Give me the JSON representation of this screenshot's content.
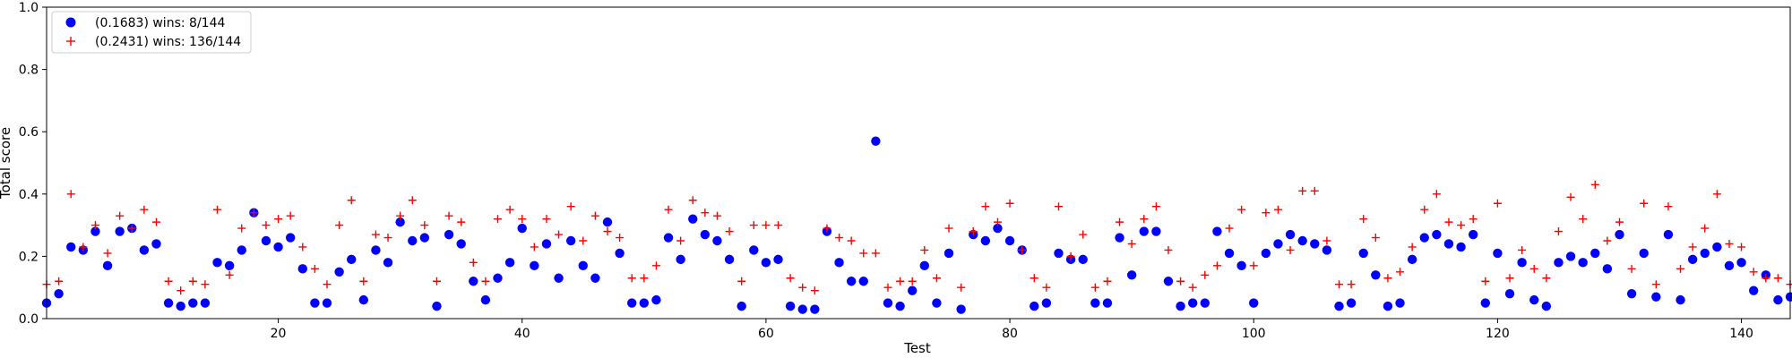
{
  "chart_data": {
    "type": "scatter",
    "title": "",
    "xlabel": "Test",
    "ylabel": "Total score",
    "xlim": [
      1,
      144
    ],
    "ylim": [
      0,
      1.0
    ],
    "xticks": [
      20,
      40,
      60,
      80,
      100,
      120,
      140
    ],
    "yticks": [
      0.0,
      0.2,
      0.4,
      0.6,
      0.8,
      1.0
    ],
    "xtick_labels": [
      "20",
      "40",
      "60",
      "80",
      "100",
      "120",
      "140"
    ],
    "ytick_labels": [
      "0.0",
      "0.2",
      "0.4",
      "0.6",
      "0.8",
      "1.0"
    ],
    "legend_position": "top-left",
    "series": [
      {
        "name": "(0.1683) wins: 8/144",
        "marker": "circle",
        "color": "#0000ff",
        "values": [
          0.05,
          0.08,
          0.23,
          0.22,
          0.28,
          0.17,
          0.28,
          0.29,
          0.22,
          0.24,
          0.05,
          0.04,
          0.05,
          0.05,
          0.18,
          0.17,
          0.22,
          0.34,
          0.25,
          0.23,
          0.26,
          0.16,
          0.05,
          0.05,
          0.15,
          0.19,
          0.06,
          0.22,
          0.18,
          0.31,
          0.25,
          0.26,
          0.04,
          0.27,
          0.24,
          0.12,
          0.06,
          0.13,
          0.18,
          0.29,
          0.17,
          0.24,
          0.13,
          0.25,
          0.17,
          0.13,
          0.31,
          0.21,
          0.05,
          0.05,
          0.06,
          0.26,
          0.19,
          0.32,
          0.27,
          0.25,
          0.19,
          0.04,
          0.22,
          0.18,
          0.19,
          0.04,
          0.03,
          0.03,
          0.28,
          0.18,
          0.12,
          0.12,
          0.57,
          0.05,
          0.04,
          0.09,
          0.17,
          0.05,
          0.21,
          0.03,
          0.27,
          0.25,
          0.29,
          0.25,
          0.22,
          0.04,
          0.05,
          0.21,
          0.19,
          0.19,
          0.05,
          0.05,
          0.26,
          0.14,
          0.28,
          0.28,
          0.12,
          0.04,
          0.05,
          0.05,
          0.28,
          0.21,
          0.17,
          0.05,
          0.21,
          0.24,
          0.27,
          0.25,
          0.24,
          0.22,
          0.04,
          0.05,
          0.21,
          0.14,
          0.04,
          0.05,
          0.19,
          0.26,
          0.27,
          0.24,
          0.23,
          0.27,
          0.05,
          0.21,
          0.08,
          0.18,
          0.06,
          0.04,
          0.18,
          0.2,
          0.18,
          0.21,
          0.16,
          0.27,
          0.08,
          0.21,
          0.07,
          0.27,
          0.06,
          0.19,
          0.21,
          0.23,
          0.17,
          0.18,
          0.09,
          0.14,
          0.06,
          0.07
        ]
      },
      {
        "name": "(0.2431) wins: 136/144",
        "marker": "plus",
        "color": "#ff0000",
        "values": [
          0.11,
          0.12,
          0.4,
          0.23,
          0.3,
          0.21,
          0.33,
          0.29,
          0.35,
          0.31,
          0.12,
          0.09,
          0.12,
          0.11,
          0.35,
          0.14,
          0.29,
          0.34,
          0.3,
          0.32,
          0.33,
          0.23,
          0.16,
          0.11,
          0.3,
          0.38,
          0.12,
          0.27,
          0.26,
          0.33,
          0.38,
          0.3,
          0.12,
          0.33,
          0.31,
          0.18,
          0.12,
          0.32,
          0.35,
          0.32,
          0.23,
          0.32,
          0.27,
          0.36,
          0.25,
          0.33,
          0.28,
          0.26,
          0.13,
          0.13,
          0.17,
          0.35,
          0.25,
          0.38,
          0.34,
          0.33,
          0.28,
          0.12,
          0.3,
          0.3,
          0.3,
          0.13,
          0.1,
          0.09,
          0.29,
          0.26,
          0.25,
          0.21,
          0.21,
          0.1,
          0.12,
          0.12,
          0.22,
          0.13,
          0.29,
          0.1,
          0.28,
          0.36,
          0.31,
          0.37,
          0.22,
          0.13,
          0.1,
          0.36,
          0.2,
          0.27,
          0.1,
          0.12,
          0.31,
          0.24,
          0.32,
          0.36,
          0.22,
          0.12,
          0.1,
          0.14,
          0.17,
          0.29,
          0.35,
          0.17,
          0.34,
          0.35,
          0.22,
          0.41,
          0.41,
          0.25,
          0.11,
          0.11,
          0.32,
          0.26,
          0.13,
          0.15,
          0.23,
          0.35,
          0.4,
          0.31,
          0.3,
          0.32,
          0.12,
          0.37,
          0.13,
          0.22,
          0.16,
          0.13,
          0.28,
          0.39,
          0.32,
          0.43,
          0.25,
          0.31,
          0.16,
          0.37,
          0.11,
          0.36,
          0.16,
          0.23,
          0.29,
          0.4,
          0.24,
          0.23,
          0.15,
          0.13,
          0.13,
          0.11
        ]
      }
    ]
  }
}
